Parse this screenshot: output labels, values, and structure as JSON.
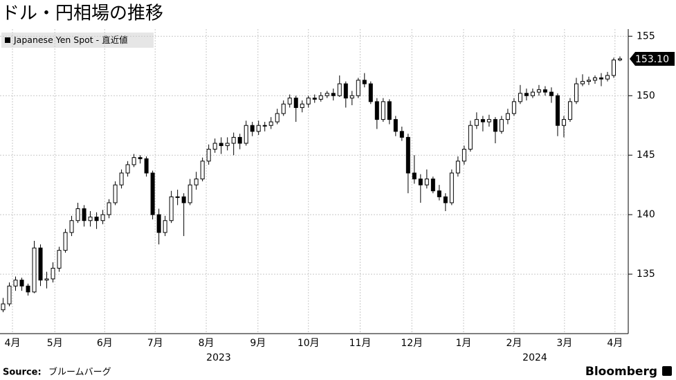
{
  "chart_data": {
    "type": "candlestick",
    "title": "ドル・円相場の推移",
    "legend": "Japanese Yen Spot - 直近値",
    "source_label": "Source:",
    "source": "ブルームバーグ",
    "brand": "Bloomberg",
    "year_labels": [
      "2023",
      "2024"
    ],
    "color": "#000000",
    "grid": true,
    "xlim": [
      -0.5,
      100
    ],
    "ylim": [
      130,
      155.6
    ],
    "yticks": [
      135,
      140,
      145,
      150,
      155
    ],
    "xticks": [
      {
        "value": 1.5,
        "label": "4月"
      },
      {
        "value": 8.3,
        "label": "5月"
      },
      {
        "value": 16.3,
        "label": "6月"
      },
      {
        "value": 24.4,
        "label": "7月"
      },
      {
        "value": 32.6,
        "label": "8月"
      },
      {
        "value": 40.9,
        "label": "9月"
      },
      {
        "value": 49,
        "label": "10月"
      },
      {
        "value": 57.3,
        "label": "11月"
      },
      {
        "value": 65.6,
        "label": "12月"
      },
      {
        "value": 73.9,
        "label": "1月"
      },
      {
        "value": 82,
        "label": "2月"
      },
      {
        "value": 90.1,
        "label": "3月"
      },
      {
        "value": 98.2,
        "label": "4月"
      }
    ],
    "last_price": {
      "value": 153.1,
      "label": "153.10"
    },
    "ohlc": [
      [
        132.0,
        133.0,
        131.8,
        132.5
      ],
      [
        132.5,
        134.3,
        132.3,
        134.0
      ],
      [
        134.0,
        134.8,
        133.6,
        134.5
      ],
      [
        134.5,
        134.7,
        133.6,
        134.0
      ],
      [
        134.0,
        134.2,
        133.2,
        133.5
      ],
      [
        133.5,
        137.8,
        133.4,
        137.2
      ],
      [
        137.2,
        137.5,
        134.0,
        134.5
      ],
      [
        134.5,
        135.2,
        133.8,
        134.6
      ],
      [
        134.6,
        136.0,
        134.3,
        135.5
      ],
      [
        135.5,
        137.3,
        135.2,
        137.0
      ],
      [
        137.0,
        138.8,
        136.8,
        138.5
      ],
      [
        138.5,
        139.9,
        138.2,
        139.5
      ],
      [
        139.5,
        141.0,
        139.3,
        140.5
      ],
      [
        140.5,
        140.8,
        139.0,
        139.5
      ],
      [
        139.5,
        140.3,
        139.0,
        139.8
      ],
      [
        139.8,
        140.2,
        138.8,
        139.5
      ],
      [
        139.5,
        140.4,
        139.2,
        140.0
      ],
      [
        140.0,
        141.3,
        139.7,
        141.0
      ],
      [
        141.0,
        142.8,
        140.8,
        142.5
      ],
      [
        142.5,
        143.8,
        142.2,
        143.5
      ],
      [
        143.5,
        144.5,
        143.2,
        144.2
      ],
      [
        144.2,
        145.1,
        144.0,
        144.8
      ],
      [
        144.8,
        145.0,
        144.3,
        144.7
      ],
      [
        144.7,
        144.9,
        143.2,
        143.5
      ],
      [
        143.5,
        143.7,
        139.6,
        140.0
      ],
      [
        140.0,
        140.5,
        137.5,
        138.5
      ],
      [
        138.5,
        139.9,
        138.2,
        139.5
      ],
      [
        139.5,
        142.0,
        139.3,
        141.5
      ],
      [
        141.5,
        142.1,
        140.8,
        141.5
      ],
      [
        141.5,
        141.8,
        138.2,
        141.0
      ],
      [
        141.0,
        143.0,
        140.8,
        142.5
      ],
      [
        142.5,
        143.6,
        142.1,
        143.0
      ],
      [
        143.0,
        144.8,
        142.8,
        144.5
      ],
      [
        144.5,
        145.9,
        144.2,
        145.5
      ],
      [
        145.5,
        146.4,
        145.2,
        146.0
      ],
      [
        146.0,
        146.5,
        145.1,
        145.8
      ],
      [
        145.8,
        146.5,
        145.4,
        146.0
      ],
      [
        146.0,
        146.9,
        145.0,
        146.5
      ],
      [
        146.5,
        146.8,
        145.5,
        146.0
      ],
      [
        146.0,
        147.9,
        145.8,
        147.5
      ],
      [
        147.5,
        147.8,
        146.6,
        147.0
      ],
      [
        147.0,
        147.9,
        146.7,
        147.5
      ],
      [
        147.5,
        147.8,
        147.0,
        147.5
      ],
      [
        147.5,
        148.2,
        147.2,
        147.8
      ],
      [
        147.8,
        148.9,
        147.6,
        148.5
      ],
      [
        148.5,
        149.6,
        148.3,
        149.3
      ],
      [
        149.3,
        150.1,
        149.0,
        149.8
      ],
      [
        149.8,
        150.0,
        147.8,
        149.0
      ],
      [
        149.0,
        149.6,
        148.6,
        149.3
      ],
      [
        149.3,
        150.0,
        149.0,
        149.8
      ],
      [
        149.8,
        150.1,
        149.4,
        149.7
      ],
      [
        149.7,
        150.3,
        149.5,
        150.0
      ],
      [
        150.0,
        150.4,
        149.8,
        150.2
      ],
      [
        150.2,
        150.6,
        149.6,
        150.0
      ],
      [
        150.0,
        151.7,
        149.9,
        151.0
      ],
      [
        151.0,
        151.2,
        149.0,
        149.8
      ],
      [
        149.8,
        150.4,
        149.2,
        150.0
      ],
      [
        150.0,
        151.5,
        149.8,
        151.3
      ],
      [
        151.3,
        151.9,
        150.7,
        151.0
      ],
      [
        151.0,
        151.2,
        149.3,
        149.5
      ],
      [
        149.5,
        149.8,
        147.2,
        148.0
      ],
      [
        148.0,
        149.8,
        147.8,
        149.5
      ],
      [
        149.5,
        149.7,
        147.6,
        148.0
      ],
      [
        148.0,
        148.3,
        146.6,
        147.0
      ],
      [
        147.0,
        147.4,
        146.2,
        146.5
      ],
      [
        146.5,
        146.8,
        141.8,
        143.5
      ],
      [
        143.5,
        145.0,
        142.6,
        143.0
      ],
      [
        143.0,
        143.4,
        141.0,
        142.5
      ],
      [
        142.5,
        143.8,
        142.2,
        143.0
      ],
      [
        143.0,
        143.2,
        141.8,
        142.0
      ],
      [
        142.0,
        142.5,
        141.2,
        141.5
      ],
      [
        141.5,
        141.8,
        140.3,
        141.0
      ],
      [
        141.0,
        143.8,
        140.8,
        143.5
      ],
      [
        143.5,
        144.9,
        143.2,
        144.5
      ],
      [
        144.5,
        145.8,
        144.2,
        145.5
      ],
      [
        145.5,
        147.9,
        145.3,
        147.5
      ],
      [
        147.5,
        148.6,
        147.2,
        148.0
      ],
      [
        148.0,
        148.3,
        147.0,
        147.8
      ],
      [
        147.8,
        148.4,
        147.4,
        148.0
      ],
      [
        148.0,
        148.2,
        146.0,
        147.0
      ],
      [
        147.0,
        148.3,
        146.8,
        148.0
      ],
      [
        148.0,
        148.9,
        147.6,
        148.5
      ],
      [
        148.5,
        149.8,
        148.3,
        149.5
      ],
      [
        149.5,
        150.9,
        149.3,
        150.2
      ],
      [
        150.2,
        150.6,
        149.6,
        150.0
      ],
      [
        150.0,
        150.6,
        149.8,
        150.3
      ],
      [
        150.3,
        150.9,
        150.0,
        150.5
      ],
      [
        150.5,
        150.8,
        150.0,
        150.3
      ],
      [
        150.3,
        150.7,
        149.4,
        150.0
      ],
      [
        150.0,
        150.2,
        146.6,
        147.5
      ],
      [
        147.5,
        148.3,
        146.5,
        148.0
      ],
      [
        148.0,
        149.8,
        147.8,
        149.5
      ],
      [
        149.5,
        151.5,
        149.3,
        151.0
      ],
      [
        151.0,
        151.8,
        150.8,
        151.2
      ],
      [
        151.2,
        151.6,
        150.9,
        151.3
      ],
      [
        151.3,
        151.7,
        151.0,
        151.5
      ],
      [
        151.5,
        151.9,
        150.8,
        151.4
      ],
      [
        151.4,
        152.0,
        151.2,
        151.7
      ],
      [
        151.7,
        153.2,
        151.5,
        153.0
      ],
      [
        153.0,
        153.3,
        152.9,
        153.1
      ]
    ]
  }
}
